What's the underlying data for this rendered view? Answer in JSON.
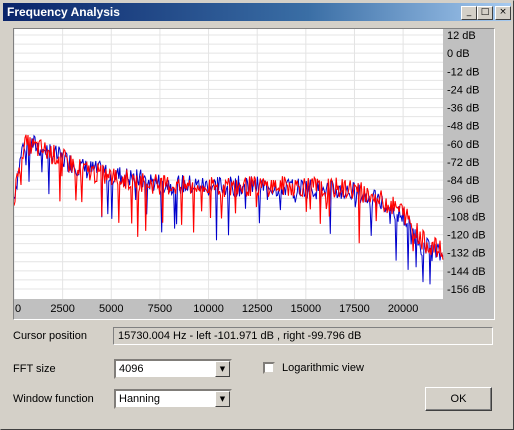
{
  "window": {
    "title": "Frequency Analysis",
    "minimize_glyph": "_",
    "maximize_glyph": "□",
    "close_glyph": "×"
  },
  "chart_data": {
    "type": "line",
    "xlabel": "",
    "ylabel": "",
    "x_ticks": [
      "0",
      "2500",
      "5000",
      "7500",
      "10000",
      "12500",
      "15000",
      "17500",
      "20000"
    ],
    "y_ticks": [
      "12 dB",
      "0 dB",
      "-12 dB",
      "-24 dB",
      "-36 dB",
      "-48 dB",
      "-60 dB",
      "-72 dB",
      "-84 dB",
      "-96 dB",
      "-108 dB",
      "-120 dB",
      "-132 dB",
      "-144 dB",
      "-156 dB"
    ],
    "xlim": [
      0,
      22050
    ],
    "ylim": [
      -156,
      12
    ],
    "grid": true,
    "series": [
      {
        "color": "#0000cc",
        "x": [
          0,
          500,
          1500,
          2500,
          3500,
          5000,
          7500,
          10000,
          12500,
          15000,
          17500,
          19000,
          20000,
          21000,
          22050
        ],
        "values": [
          -95,
          -58,
          -63,
          -70,
          -76,
          -80,
          -86,
          -88,
          -88,
          -89,
          -92,
          -100,
          -108,
          -128,
          -134
        ]
      },
      {
        "color": "#ff0000",
        "x": [
          0,
          500,
          1500,
          2500,
          3500,
          5000,
          7500,
          10000,
          12500,
          15000,
          17500,
          19000,
          20000,
          21000,
          22050
        ],
        "values": [
          -95,
          -60,
          -64,
          -70,
          -77,
          -82,
          -87,
          -89,
          -88,
          -88,
          -90,
          -98,
          -105,
          -124,
          -132
        ]
      }
    ],
    "colors": {
      "background": "#ffffff",
      "grid": "#e4e4e4",
      "axis_panel": "#c0c0c0"
    }
  },
  "cursor": {
    "label": "Cursor position",
    "value": "15730.004 Hz  -  left -101.971 dB , right -99.796 dB"
  },
  "fft": {
    "label": "FFT size",
    "selected": "4096"
  },
  "window_fn": {
    "label": "Window function",
    "selected": "Hanning"
  },
  "log_view": {
    "label": "Logarithmic view",
    "checked": false
  },
  "ok_label": "OK"
}
